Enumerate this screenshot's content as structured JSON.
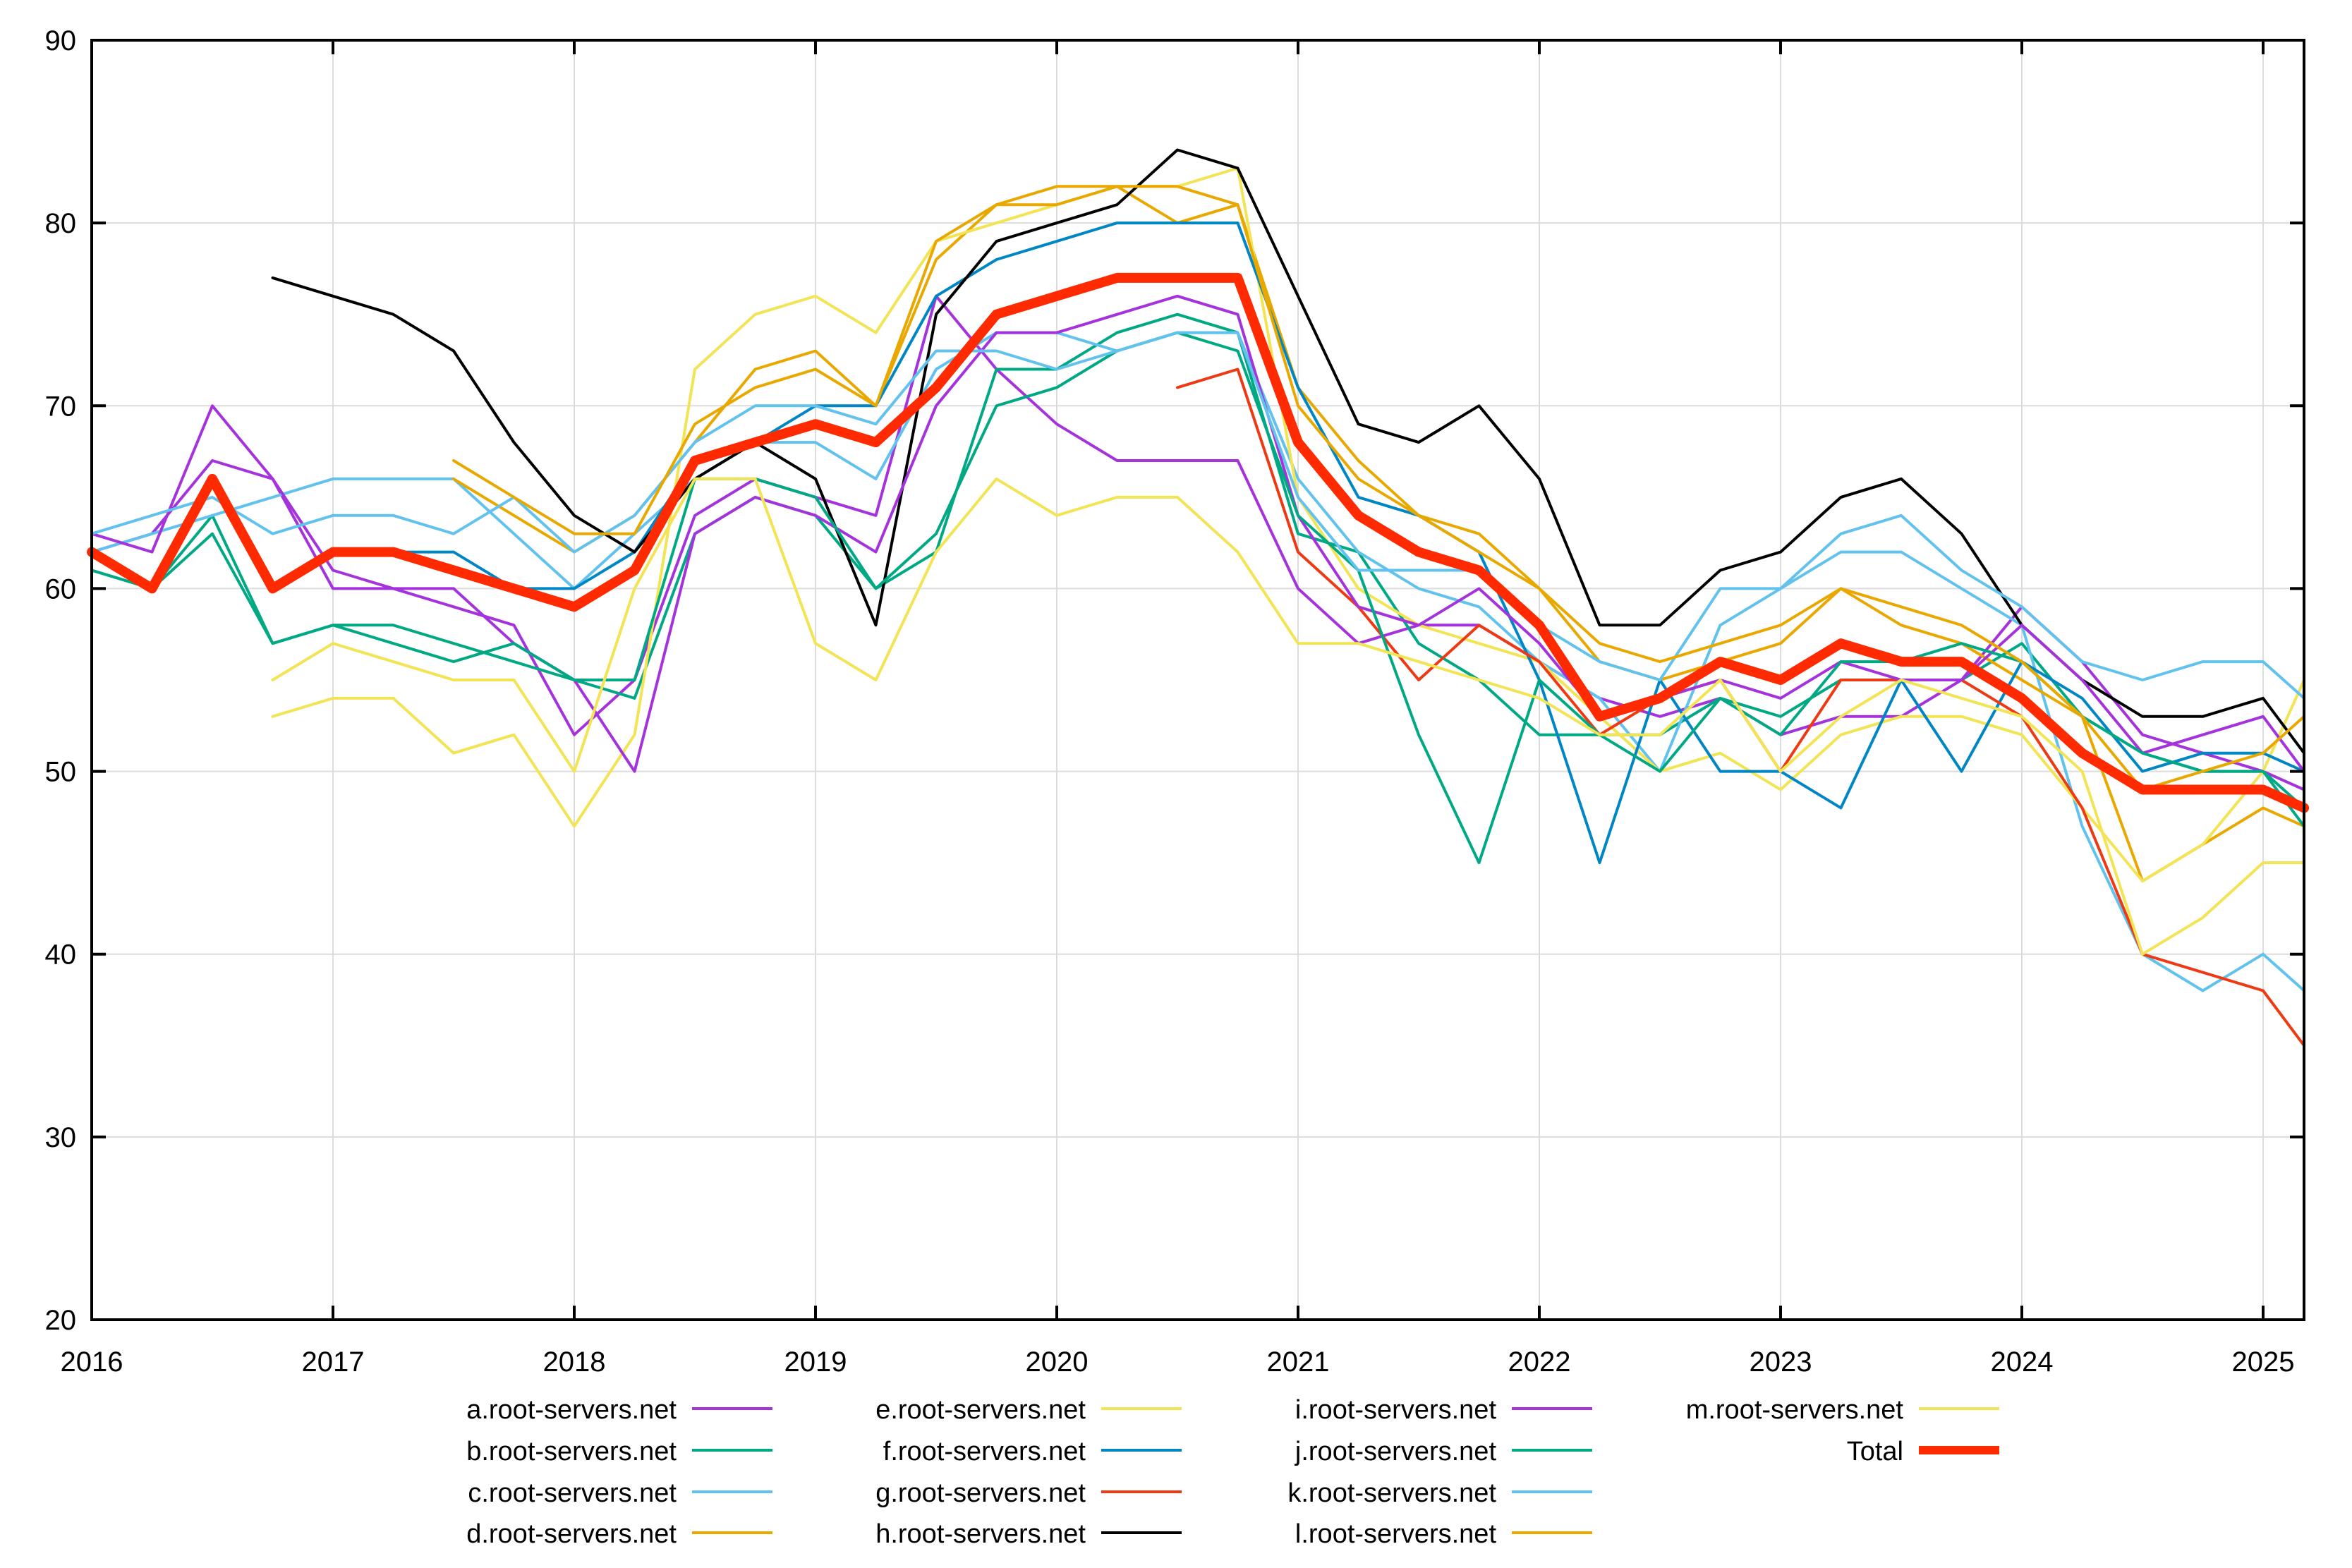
{
  "chart_data": {
    "type": "line",
    "title": "",
    "xlabel": "",
    "ylabel": "",
    "xlim": [
      2016,
      2025.17
    ],
    "ylim": [
      20,
      90
    ],
    "grid": true,
    "legend_position": "bottom",
    "x_ticks": [
      "2016",
      "2017",
      "2018",
      "2019",
      "2020",
      "2021",
      "2022",
      "2023",
      "2024",
      "2025"
    ],
    "y_ticks": [
      "20",
      "30",
      "40",
      "50",
      "60",
      "70",
      "80",
      "90"
    ],
    "x": [
      2016,
      2016.25,
      2016.5,
      2016.75,
      2017,
      2017.25,
      2017.5,
      2017.75,
      2018,
      2018.25,
      2018.5,
      2018.75,
      2019,
      2019.25,
      2019.5,
      2019.75,
      2020,
      2020.25,
      2020.5,
      2020.75,
      2021,
      2021.25,
      2021.5,
      2021.75,
      2022,
      2022.25,
      2022.5,
      2022.75,
      2023,
      2023.25,
      2023.5,
      2023.75,
      2024,
      2024.25,
      2024.5,
      2024.75,
      2025,
      2025.17
    ],
    "series": [
      {
        "name": "a.root-servers.net",
        "color": "#a433dc",
        "values": [
          62,
          63,
          67,
          66,
          60,
          60,
          59,
          58,
          52,
          55,
          64,
          66,
          65,
          64,
          76,
          72,
          69,
          67,
          67,
          67,
          60,
          57,
          58,
          58,
          56,
          54,
          53,
          54,
          52,
          53,
          53,
          55,
          59,
          56,
          52,
          51,
          50,
          49
        ]
      },
      {
        "name": "b.root-servers.net",
        "color": "#00a884",
        "values": [
          61,
          60,
          64,
          57,
          58,
          58,
          57,
          56,
          55,
          54,
          63,
          65,
          64,
          60,
          62,
          72,
          72,
          74,
          75,
          74,
          63,
          62,
          57,
          55,
          52,
          52,
          52,
          54,
          53,
          55,
          55,
          55,
          57,
          53,
          51,
          50,
          50,
          48
        ]
      },
      {
        "name": "c.root-servers.net",
        "color": "#62c2ee",
        "values": [
          62,
          63,
          64,
          65,
          66,
          66,
          66,
          63,
          60,
          63,
          66,
          68,
          68,
          66,
          72,
          74,
          74,
          73,
          74,
          74,
          66,
          62,
          60,
          59,
          56,
          54,
          50,
          58,
          60,
          62,
          62,
          60,
          58,
          47,
          40,
          38,
          40,
          38
        ]
      },
      {
        "name": "d.root-servers.net",
        "color": "#e8a800",
        "values": [
          null,
          null,
          null,
          null,
          null,
          null,
          66,
          64,
          62,
          64,
          68,
          72,
          73,
          70,
          78,
          81,
          82,
          82,
          80,
          81,
          71,
          67,
          64,
          63,
          60,
          56,
          55,
          56,
          57,
          60,
          58,
          57,
          55,
          53,
          44,
          46,
          48,
          47
        ]
      },
      {
        "name": "e.root-servers.net",
        "color": "#f2e455",
        "values": [
          null,
          null,
          null,
          53,
          54,
          54,
          51,
          52,
          47,
          52,
          72,
          75,
          76,
          74,
          79,
          80,
          81,
          82,
          82,
          83,
          65,
          60,
          58,
          57,
          56,
          53,
          50,
          51,
          49,
          52,
          53,
          53,
          52,
          48,
          44,
          46,
          50,
          55
        ]
      },
      {
        "name": "f.root-servers.net",
        "color": "#0086c4",
        "values": [
          null,
          null,
          null,
          null,
          null,
          62,
          62,
          60,
          60,
          62,
          67,
          68,
          70,
          70,
          76,
          78,
          79,
          80,
          80,
          80,
          71,
          65,
          64,
          62,
          55,
          45,
          55,
          50,
          50,
          48,
          55,
          50,
          56,
          54,
          50,
          51,
          51,
          50
        ]
      },
      {
        "name": "g.root-servers.net",
        "color": "#ee3a14",
        "values": [
          null,
          null,
          null,
          null,
          null,
          null,
          null,
          null,
          null,
          null,
          null,
          null,
          null,
          null,
          null,
          null,
          null,
          null,
          71,
          72,
          62,
          59,
          55,
          58,
          56,
          52,
          54,
          55,
          50,
          55,
          55,
          55,
          53,
          48,
          40,
          39,
          38,
          35
        ]
      },
      {
        "name": "h.root-servers.net",
        "color": "#000000",
        "values": [
          null,
          null,
          null,
          77,
          76,
          75,
          73,
          68,
          64,
          62,
          66,
          68,
          66,
          58,
          75,
          79,
          80,
          81,
          84,
          83,
          76,
          69,
          68,
          70,
          66,
          58,
          58,
          61,
          62,
          65,
          66,
          63,
          58,
          55,
          53,
          53,
          54,
          51
        ]
      },
      {
        "name": "i.root-servers.net",
        "color": "#a433dc",
        "values": [
          63,
          62,
          70,
          66,
          61,
          60,
          60,
          57,
          55,
          50,
          63,
          65,
          64,
          62,
          70,
          74,
          74,
          75,
          76,
          75,
          64,
          59,
          58,
          60,
          57,
          53,
          54,
          55,
          54,
          56,
          55,
          55,
          58,
          55,
          51,
          52,
          53,
          50
        ]
      },
      {
        "name": "j.root-servers.net",
        "color": "#00a884",
        "values": [
          61,
          60,
          63,
          57,
          58,
          57,
          56,
          57,
          55,
          55,
          66,
          66,
          65,
          60,
          63,
          70,
          71,
          73,
          74,
          73,
          64,
          61,
          52,
          45,
          55,
          52,
          50,
          54,
          52,
          56,
          56,
          57,
          56,
          53,
          51,
          50,
          50,
          47
        ]
      },
      {
        "name": "k.root-servers.net",
        "color": "#62c2ee",
        "values": [
          63,
          64,
          65,
          63,
          64,
          64,
          63,
          65,
          62,
          64,
          68,
          70,
          70,
          69,
          73,
          73,
          72,
          73,
          74,
          74,
          65,
          61,
          61,
          61,
          58,
          56,
          55,
          60,
          60,
          63,
          64,
          61,
          59,
          56,
          55,
          56,
          56,
          54
        ]
      },
      {
        "name": "l.root-servers.net",
        "color": "#e8a800",
        "values": [
          null,
          null,
          null,
          null,
          null,
          null,
          67,
          65,
          63,
          63,
          69,
          71,
          72,
          70,
          79,
          81,
          81,
          82,
          82,
          81,
          70,
          66,
          64,
          62,
          60,
          57,
          56,
          57,
          58,
          60,
          59,
          58,
          56,
          53,
          49,
          50,
          51,
          53
        ]
      },
      {
        "name": "m.root-servers.net",
        "color": "#f2e455",
        "values": [
          null,
          null,
          null,
          55,
          57,
          56,
          55,
          55,
          50,
          60,
          66,
          66,
          57,
          55,
          62,
          66,
          64,
          65,
          65,
          62,
          57,
          57,
          56,
          55,
          54,
          52,
          52,
          55,
          50,
          53,
          55,
          54,
          53,
          50,
          40,
          42,
          45,
          45
        ]
      },
      {
        "name": "Total",
        "color": "#ff2a00",
        "values": [
          62,
          60,
          66,
          60,
          62,
          62,
          61,
          60,
          59,
          61,
          67,
          68,
          69,
          68,
          71,
          75,
          76,
          77,
          77,
          77,
          68,
          64,
          62,
          61,
          58,
          53,
          54,
          56,
          55,
          57,
          56,
          56,
          54,
          51,
          49,
          49,
          49,
          48
        ]
      }
    ]
  }
}
